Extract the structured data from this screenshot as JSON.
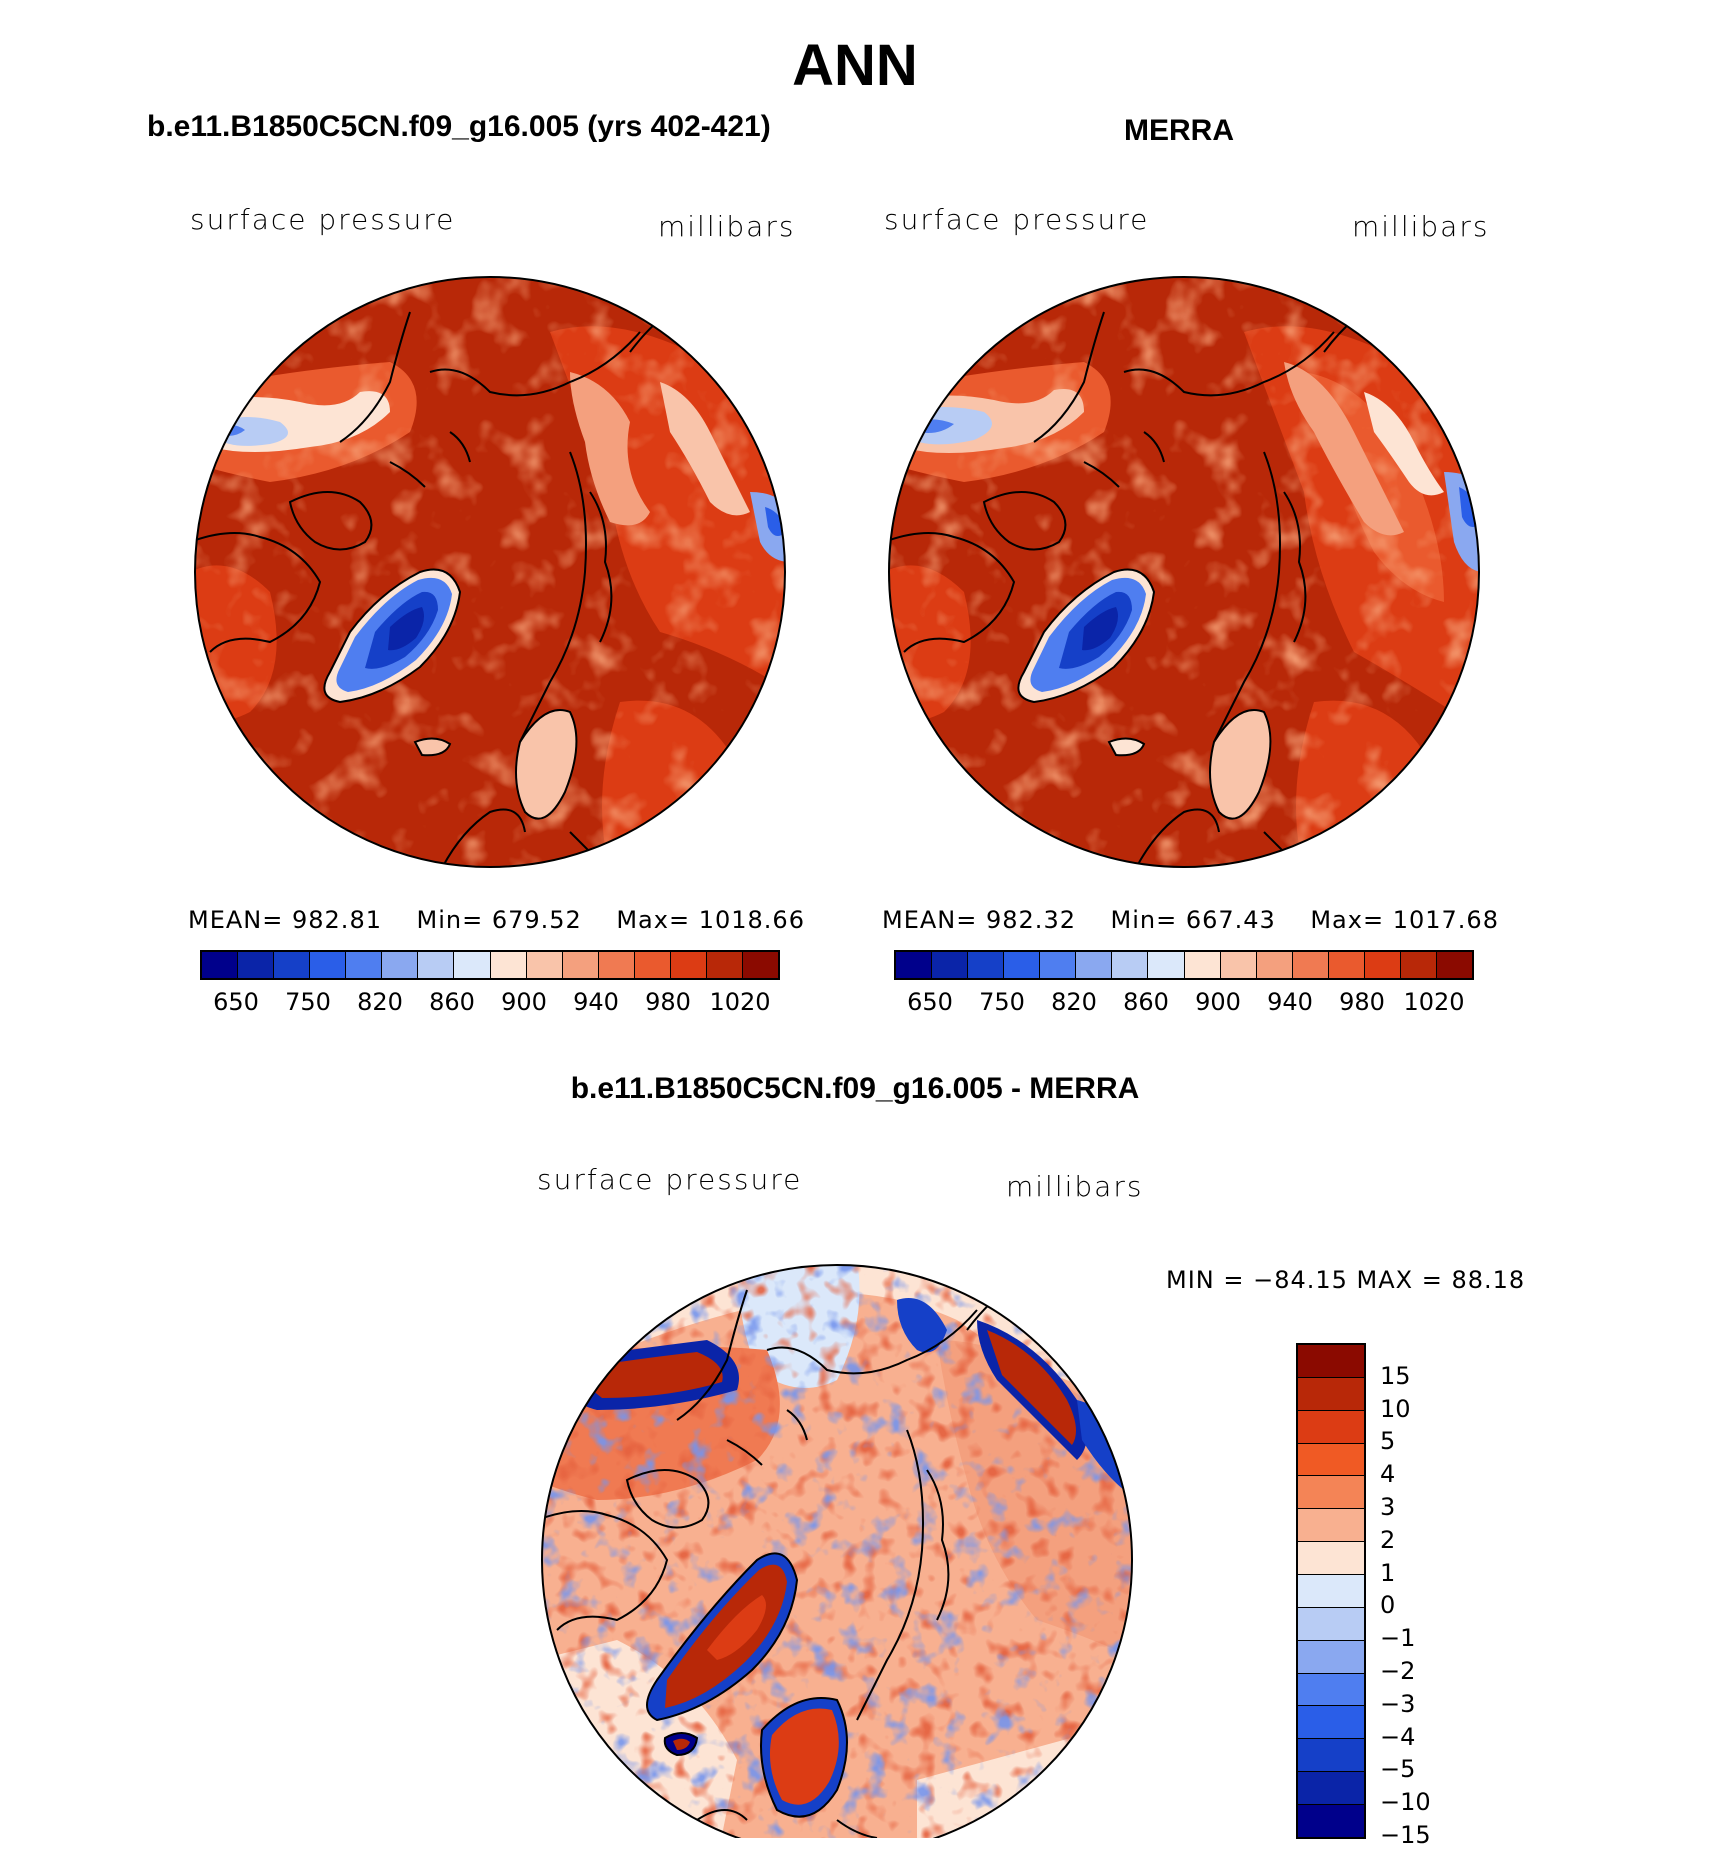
{
  "title": "ANN",
  "panels": {
    "left": {
      "title": "b.e11.B1850C5CN.f09_g16.005 (yrs 402-421)",
      "variable": "surface pressure",
      "units": "millibars",
      "stats": {
        "mean_label": "MEAN=",
        "mean": "982.81",
        "min_label": "Min=",
        "min": "679.52",
        "max_label": "Max=",
        "max": "1018.66"
      }
    },
    "right": {
      "title": "MERRA",
      "variable": "surface pressure",
      "units": "millibars",
      "stats": {
        "mean_label": "MEAN=",
        "mean": "982.32",
        "min_label": "Min=",
        "min": "667.43",
        "max_label": "Max=",
        "max": "1017.68"
      }
    },
    "diff": {
      "title": "b.e11.B1850C5CN.f09_g16.005 - MERRA",
      "variable": "surface pressure",
      "units": "millibars",
      "minmax": "MIN = −84.15 MAX =   88.18"
    }
  },
  "colorbar_abs": {
    "labels": [
      "650",
      "750",
      "820",
      "860",
      "900",
      "940",
      "980",
      "1020"
    ],
    "colors": [
      "#00008b",
      "#0a24a8",
      "#1540c8",
      "#2a5ee8",
      "#4f7ef0",
      "#8aa8f0",
      "#b8ccf4",
      "#dbe8fa",
      "#fde4d4",
      "#f9c4aa",
      "#f4a07e",
      "#f07a52",
      "#ea5a2e",
      "#dc3c14",
      "#b82808",
      "#8b0a00"
    ]
  },
  "colorbar_diff": {
    "labels": [
      "15",
      "10",
      "5",
      "4",
      "3",
      "2",
      "1",
      "0",
      "−1",
      "−2",
      "−3",
      "−4",
      "−5",
      "−10",
      "−15"
    ],
    "colors": [
      "#8b0a00",
      "#b82808",
      "#dc3c14",
      "#f05a24",
      "#f48456",
      "#f8b090",
      "#fde4d4",
      "#dbe8fa",
      "#b8ccf4",
      "#8aa8f0",
      "#4f7ef0",
      "#2a5ee8",
      "#1540c8",
      "#0a24a8",
      "#00008b"
    ]
  }
}
